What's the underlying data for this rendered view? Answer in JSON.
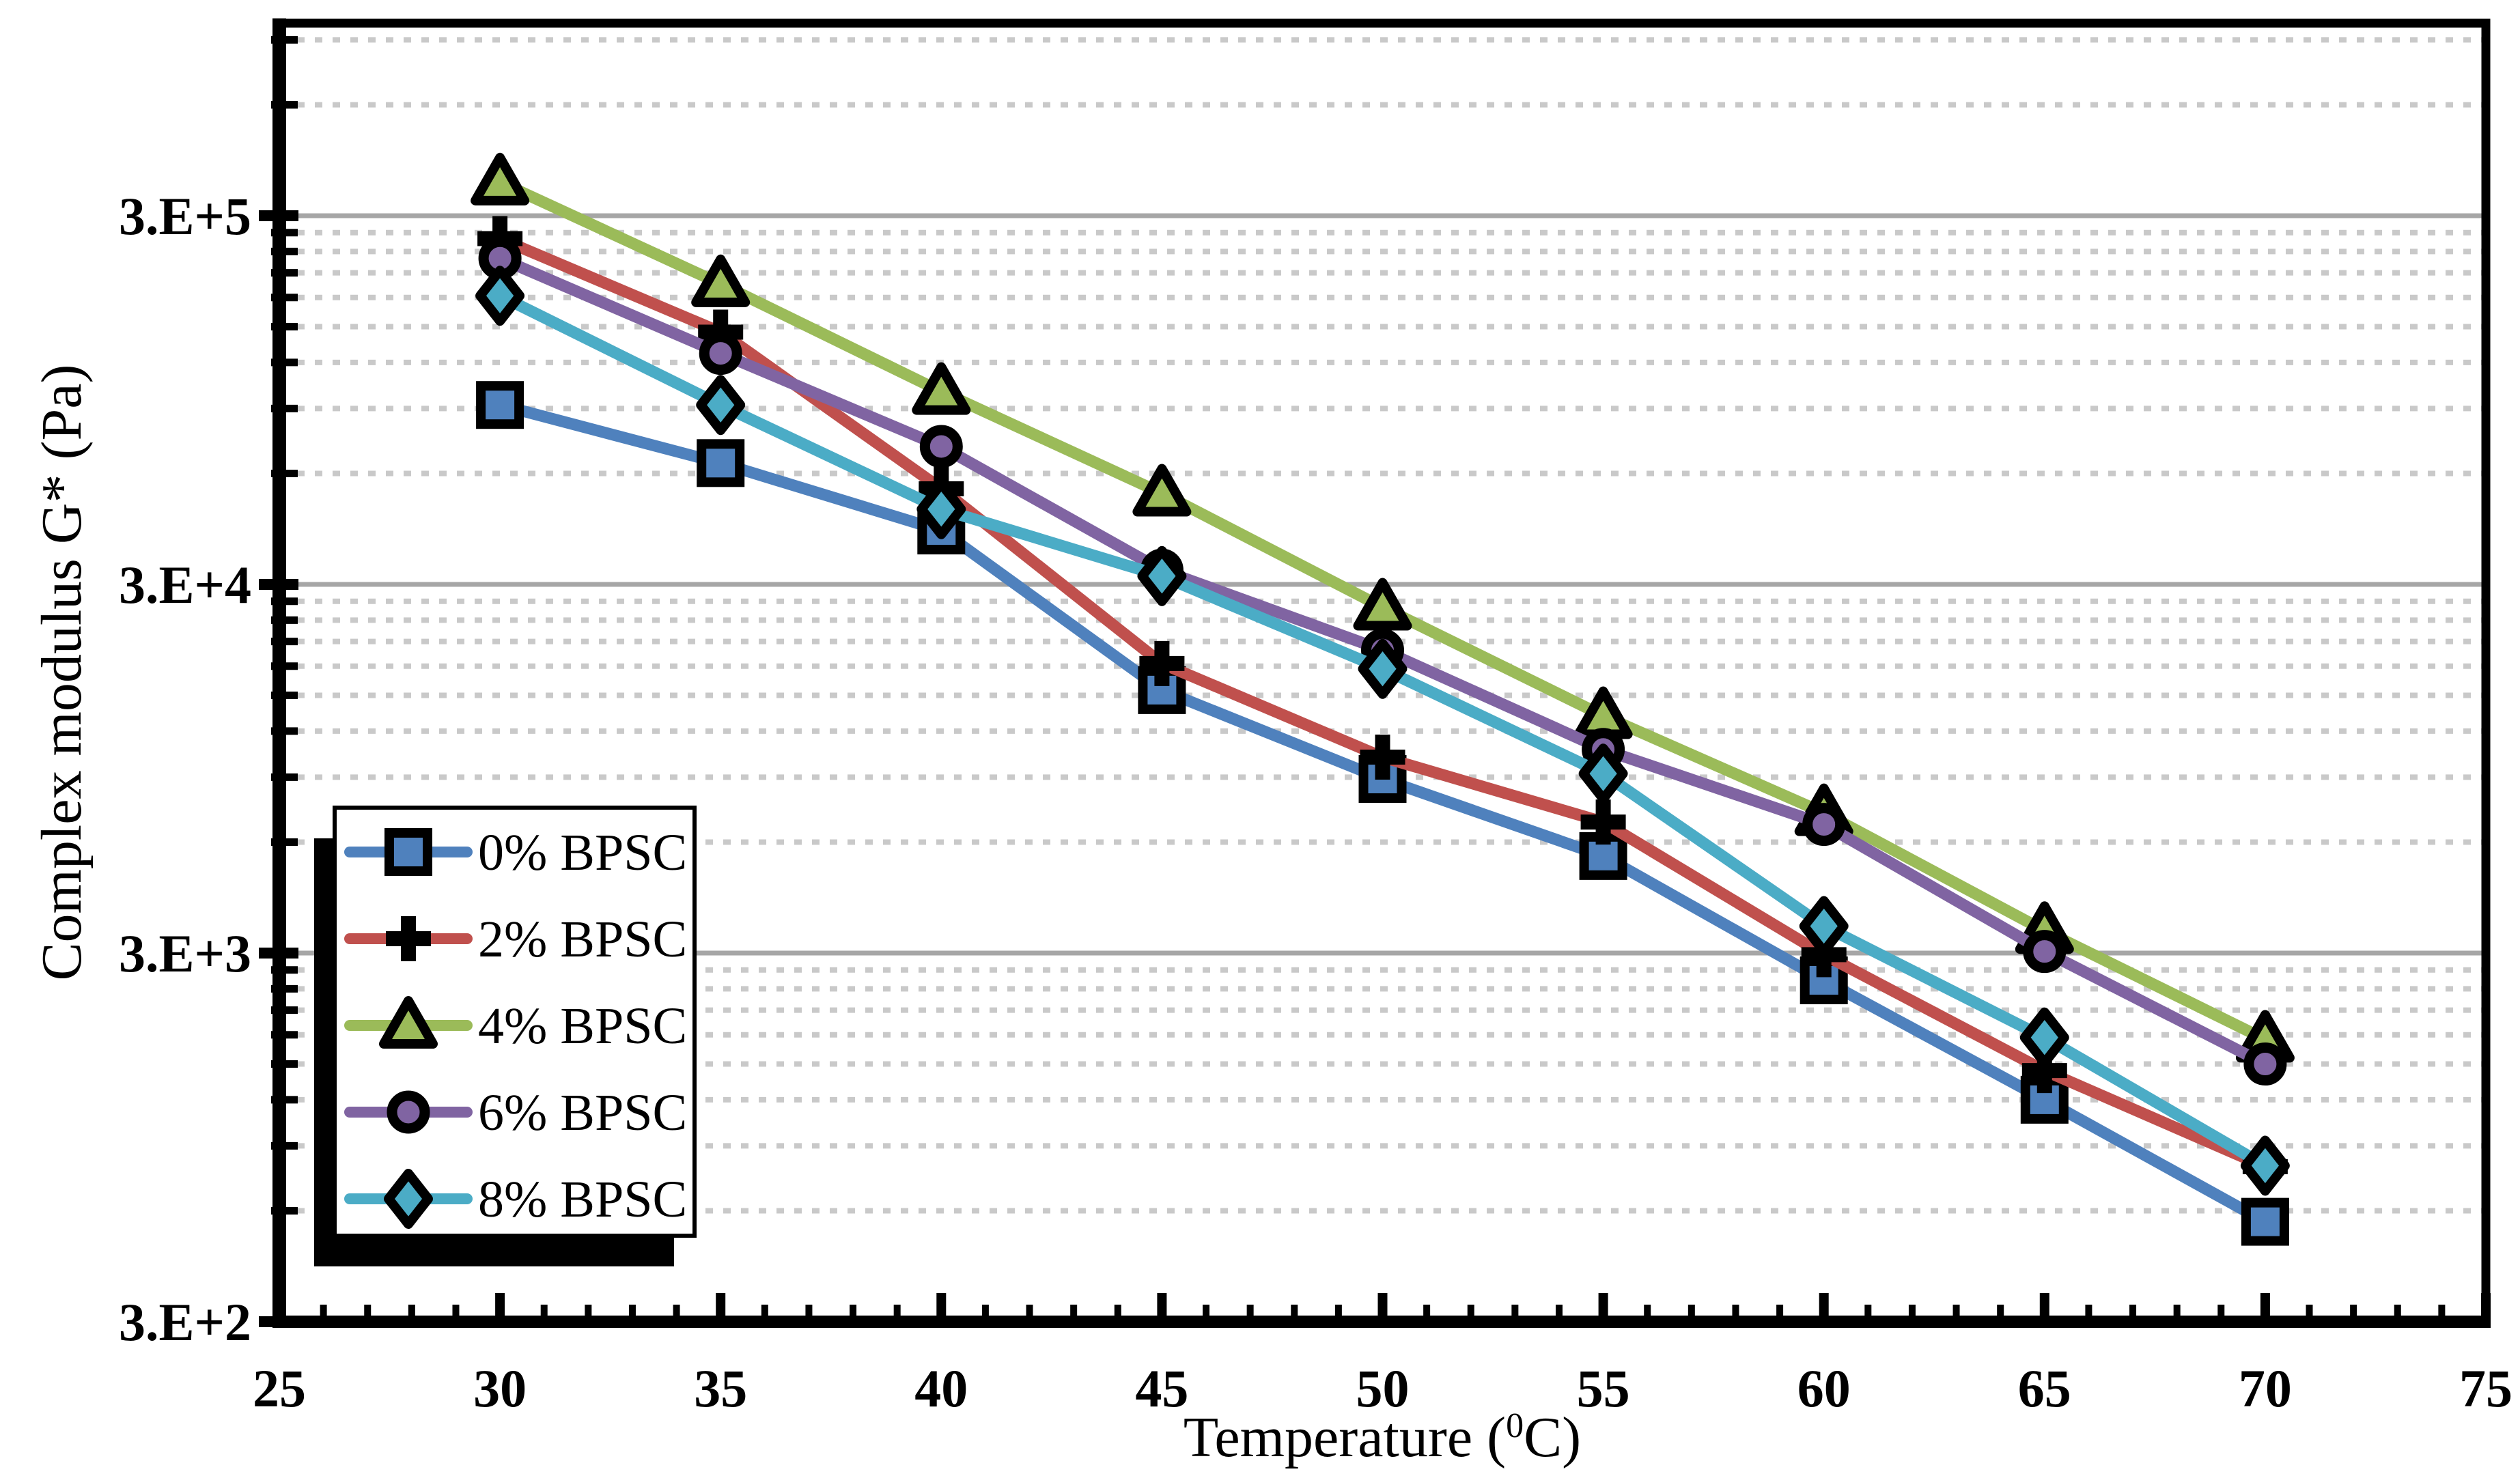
{
  "figure": {
    "background": "#ffffff",
    "y_axis": {
      "title": "Complex modulus G* (Pa)",
      "scale": "log",
      "tick_labels": [
        "3.E+5",
        "3.E+4",
        "3.E+3",
        "3.E+2"
      ],
      "tick_values": [
        300000,
        30000,
        3000,
        300
      ],
      "minor_rule": "multiples k*3*10^n, k=2..9",
      "min": 300,
      "max": 1000000
    },
    "x_axis": {
      "title_plain": "Temperature (0C)",
      "title_prefix": "Temperature (",
      "title_sup": "0",
      "title_suffix": "C)",
      "tick_labels": [
        "25",
        "30",
        "35",
        "40",
        "45",
        "50",
        "55",
        "60",
        "65",
        "70",
        "75"
      ],
      "tick_values": [
        25,
        30,
        35,
        40,
        45,
        50,
        55,
        60,
        65,
        70,
        75
      ],
      "minor_step": 1,
      "min": 25,
      "max": 75
    },
    "legend": {
      "position": "inside-bottom-left",
      "items": [
        {
          "label": "0% BPSC",
          "marker": "square",
          "color": "#4F81BD"
        },
        {
          "label": "2% BPSC",
          "marker": "plus",
          "color": "#C0504D"
        },
        {
          "label": "4% BPSC",
          "marker": "triangle",
          "color": "#9BBB59"
        },
        {
          "label": "6% BPSC",
          "marker": "circle",
          "color": "#8064A2"
        },
        {
          "label": "8% BPSC",
          "marker": "diamond",
          "color": "#4BACC6"
        }
      ]
    },
    "colors": {
      "major_grid": "#A6A6A6",
      "minor_grid": "#C9C9C9",
      "axis": "#000000",
      "legend_shadow": "#000000",
      "legend_fill": "#ffffff"
    }
  },
  "chart_data": {
    "type": "line",
    "title": "",
    "xlabel": "Temperature (0C)",
    "ylabel": "Complex modulus G* (Pa)",
    "yscale": "log",
    "xlim": [
      25,
      75
    ],
    "ylim": [
      300,
      1000000
    ],
    "grid": {
      "major": "solid-gray",
      "minor": "dotted-light-gray"
    },
    "legend_position": "inside-bottom-left",
    "x": [
      30,
      35,
      40,
      45,
      50,
      55,
      60,
      65,
      70
    ],
    "series": [
      {
        "name": "0% BPSC",
        "color": "#4F81BD",
        "marker": "square",
        "values": [
          92000,
          64000,
          42000,
          15500,
          8900,
          5500,
          2530,
          1200,
          560
        ]
      },
      {
        "name": "2% BPSC",
        "color": "#C0504D",
        "marker": "plus",
        "values": [
          260000,
          145000,
          54500,
          18300,
          10200,
          6800,
          2970,
          1440,
          790
        ]
      },
      {
        "name": "4% BPSC",
        "color": "#9BBB59",
        "marker": "triangle",
        "values": [
          370000,
          196000,
          100000,
          53000,
          26000,
          13200,
          7200,
          3450,
          1750
        ]
      },
      {
        "name": "6% BPSC",
        "color": "#8064A2",
        "marker": "circle",
        "values": [
          230000,
          127000,
          71000,
          32800,
          19900,
          10700,
          6700,
          3030,
          1500
        ]
      },
      {
        "name": "8% BPSC",
        "color": "#4BACC6",
        "marker": "diamond",
        "values": [
          182000,
          92000,
          48000,
          31600,
          17700,
          9200,
          3550,
          1770,
          795
        ]
      }
    ]
  }
}
